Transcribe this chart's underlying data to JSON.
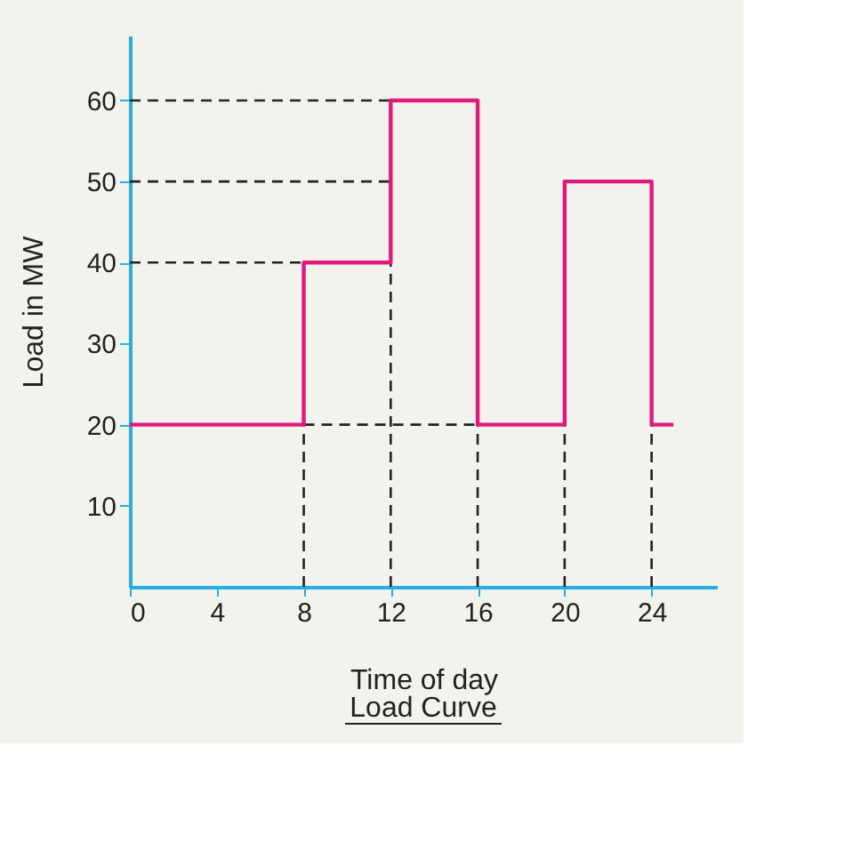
{
  "chart_data": {
    "type": "step",
    "xlabel": "Time of day",
    "ylabel": "Load in MW",
    "annotations": [
      "Load Curve"
    ],
    "x": [
      0,
      8,
      12,
      16,
      20,
      24,
      25
    ],
    "series": [
      {
        "color": "#e0197d",
        "values": [
          20,
          40,
          60,
          20,
          50,
          20,
          20
        ]
      }
    ],
    "xlim": [
      0,
      27
    ],
    "ylim": [
      0,
      68
    ],
    "xticks": [
      0,
      4,
      8,
      12,
      16,
      20,
      24
    ],
    "yticks": [
      10,
      20,
      30,
      40,
      50,
      60
    ],
    "ref_lines": [
      {
        "axis": "y",
        "value": 60,
        "line_style": "dashed",
        "color": "#222222"
      },
      {
        "axis": "y",
        "value": 50,
        "line_style": "dashed",
        "color": "#222222"
      },
      {
        "axis": "y",
        "value": 40,
        "line_style": "dashed",
        "color": "#222222"
      },
      {
        "axis": "y",
        "value": 20,
        "line_style": "dashed",
        "color": "#222222"
      },
      {
        "axis": "x",
        "value": 8,
        "line_style": "dashed",
        "color": "#222222"
      },
      {
        "axis": "x",
        "value": 12,
        "line_style": "dashed",
        "color": "#222222"
      },
      {
        "axis": "x",
        "value": 16,
        "line_style": "dashed",
        "color": "#222222"
      },
      {
        "axis": "x",
        "value": 20,
        "line_style": "dashed",
        "color": "#222222"
      },
      {
        "axis": "x",
        "value": 24,
        "line_style": "dashed",
        "color": "#222222"
      }
    ],
    "grid": false,
    "marker": "none",
    "line_style": "solid"
  }
}
